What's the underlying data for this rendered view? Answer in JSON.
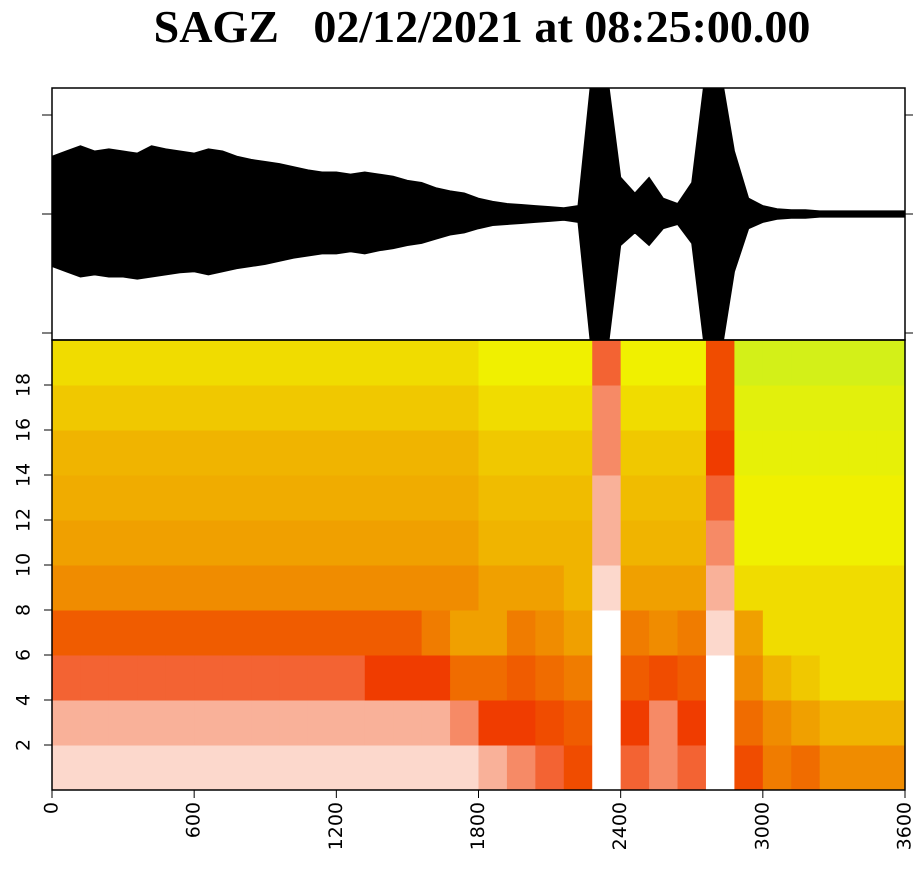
{
  "chart_data": [
    {
      "type": "waveform",
      "title": "SAGZ   02/12/2021 at 08:25:00.00",
      "color": "#000000",
      "xlim": [
        0,
        3600
      ],
      "ylim": [
        -1.2,
        1.2
      ],
      "x": [
        0,
        60,
        120,
        180,
        240,
        300,
        360,
        420,
        480,
        540,
        600,
        660,
        720,
        780,
        840,
        900,
        960,
        1020,
        1080,
        1140,
        1200,
        1260,
        1320,
        1380,
        1440,
        1500,
        1560,
        1620,
        1680,
        1740,
        1800,
        1860,
        1920,
        1980,
        2040,
        2100,
        2160,
        2220,
        2280,
        2340,
        2400,
        2460,
        2520,
        2580,
        2640,
        2700,
        2760,
        2820,
        2880,
        2940,
        3000,
        3060,
        3120,
        3180,
        3240,
        3300,
        3360,
        3420,
        3480,
        3540,
        3600
      ],
      "series": [
        {
          "name": "upper",
          "values": [
            0.55,
            0.6,
            0.65,
            0.6,
            0.62,
            0.6,
            0.58,
            0.65,
            0.62,
            0.6,
            0.58,
            0.62,
            0.6,
            0.55,
            0.52,
            0.5,
            0.48,
            0.45,
            0.42,
            0.4,
            0.4,
            0.38,
            0.4,
            0.38,
            0.36,
            0.32,
            0.3,
            0.25,
            0.22,
            0.2,
            0.15,
            0.12,
            0.1,
            0.09,
            0.08,
            0.07,
            0.06,
            0.08,
            1.4,
            1.4,
            0.35,
            0.2,
            0.35,
            0.15,
            0.1,
            0.3,
            1.4,
            1.4,
            0.6,
            0.15,
            0.08,
            0.05,
            0.04,
            0.04,
            0.03,
            0.03,
            0.03,
            0.03,
            0.03,
            0.03,
            0.03
          ]
        },
        {
          "name": "lower",
          "values": [
            -0.5,
            -0.55,
            -0.6,
            -0.58,
            -0.6,
            -0.6,
            -0.62,
            -0.6,
            -0.58,
            -0.56,
            -0.55,
            -0.58,
            -0.55,
            -0.52,
            -0.5,
            -0.48,
            -0.45,
            -0.42,
            -0.4,
            -0.38,
            -0.38,
            -0.36,
            -0.38,
            -0.35,
            -0.33,
            -0.3,
            -0.28,
            -0.24,
            -0.2,
            -0.18,
            -0.14,
            -0.11,
            -0.1,
            -0.09,
            -0.08,
            -0.07,
            -0.06,
            -0.08,
            -1.4,
            -1.4,
            -0.3,
            -0.18,
            -0.3,
            -0.14,
            -0.1,
            -0.28,
            -1.4,
            -1.4,
            -0.55,
            -0.14,
            -0.08,
            -0.05,
            -0.04,
            -0.04,
            -0.03,
            -0.03,
            -0.03,
            -0.03,
            -0.03,
            -0.03,
            -0.03
          ]
        }
      ]
    },
    {
      "type": "spectrogram",
      "xlim": [
        0,
        3600
      ],
      "ylim": [
        0,
        20
      ],
      "xticks": [
        0,
        600,
        1200,
        1800,
        2400,
        3000,
        3600
      ],
      "yticks": [
        2,
        4,
        6,
        8,
        10,
        12,
        14,
        16,
        18
      ],
      "zlim": [
        0,
        1
      ],
      "colormap": [
        "#a8f03c",
        "#f0f000",
        "#f08c00",
        "#f03c00",
        "#ffffff"
      ],
      "z": [
        [
          0.95,
          0.95,
          0.95,
          0.95,
          0.95,
          0.95,
          0.95,
          0.95,
          0.95,
          0.95,
          0.95,
          0.95,
          0.95,
          0.95,
          0.95,
          0.9,
          0.85,
          0.8,
          0.7,
          1.0,
          0.8,
          0.85,
          0.8,
          1.0,
          0.7,
          0.55,
          0.6,
          0.5,
          0.5,
          0.5
        ],
        [
          0.9,
          0.9,
          0.9,
          0.9,
          0.9,
          0.9,
          0.9,
          0.9,
          0.9,
          0.9,
          0.9,
          0.9,
          0.9,
          0.9,
          0.85,
          0.75,
          0.75,
          0.7,
          0.65,
          1.0,
          0.75,
          0.85,
          0.75,
          1.0,
          0.6,
          0.5,
          0.45,
          0.4,
          0.4,
          0.4
        ],
        [
          0.8,
          0.8,
          0.8,
          0.8,
          0.8,
          0.8,
          0.8,
          0.8,
          0.8,
          0.8,
          0.8,
          0.75,
          0.75,
          0.75,
          0.6,
          0.6,
          0.65,
          0.6,
          0.55,
          1.0,
          0.65,
          0.7,
          0.65,
          1.0,
          0.5,
          0.4,
          0.35,
          0.3,
          0.3,
          0.3
        ],
        [
          0.65,
          0.65,
          0.65,
          0.65,
          0.65,
          0.65,
          0.65,
          0.65,
          0.65,
          0.65,
          0.65,
          0.65,
          0.65,
          0.55,
          0.45,
          0.45,
          0.55,
          0.5,
          0.45,
          1.0,
          0.55,
          0.5,
          0.55,
          0.95,
          0.45,
          0.3,
          0.3,
          0.3,
          0.3,
          0.3
        ],
        [
          0.5,
          0.5,
          0.5,
          0.5,
          0.5,
          0.5,
          0.5,
          0.5,
          0.5,
          0.5,
          0.5,
          0.5,
          0.5,
          0.5,
          0.5,
          0.45,
          0.45,
          0.45,
          0.4,
          0.95,
          0.45,
          0.45,
          0.45,
          0.9,
          0.3,
          0.3,
          0.3,
          0.3,
          0.3,
          0.3
        ],
        [
          0.45,
          0.45,
          0.45,
          0.45,
          0.45,
          0.45,
          0.45,
          0.45,
          0.45,
          0.45,
          0.45,
          0.45,
          0.45,
          0.45,
          0.45,
          0.4,
          0.4,
          0.4,
          0.4,
          0.9,
          0.4,
          0.4,
          0.4,
          0.85,
          0.25,
          0.25,
          0.25,
          0.25,
          0.25,
          0.25
        ],
        [
          0.42,
          0.42,
          0.42,
          0.42,
          0.42,
          0.42,
          0.42,
          0.42,
          0.42,
          0.42,
          0.42,
          0.42,
          0.42,
          0.42,
          0.42,
          0.38,
          0.38,
          0.38,
          0.38,
          0.9,
          0.38,
          0.38,
          0.38,
          0.8,
          0.25,
          0.25,
          0.25,
          0.25,
          0.25,
          0.25
        ],
        [
          0.4,
          0.4,
          0.4,
          0.4,
          0.4,
          0.4,
          0.4,
          0.4,
          0.4,
          0.4,
          0.4,
          0.4,
          0.4,
          0.4,
          0.4,
          0.35,
          0.35,
          0.35,
          0.35,
          0.85,
          0.35,
          0.35,
          0.35,
          0.75,
          0.22,
          0.22,
          0.22,
          0.22,
          0.22,
          0.22
        ],
        [
          0.35,
          0.35,
          0.35,
          0.35,
          0.35,
          0.35,
          0.35,
          0.35,
          0.35,
          0.35,
          0.35,
          0.35,
          0.35,
          0.35,
          0.35,
          0.3,
          0.3,
          0.3,
          0.3,
          0.85,
          0.3,
          0.3,
          0.3,
          0.7,
          0.2,
          0.2,
          0.2,
          0.2,
          0.2,
          0.2
        ],
        [
          0.3,
          0.3,
          0.3,
          0.3,
          0.3,
          0.3,
          0.3,
          0.3,
          0.3,
          0.3,
          0.3,
          0.3,
          0.3,
          0.3,
          0.3,
          0.25,
          0.25,
          0.25,
          0.25,
          0.8,
          0.25,
          0.25,
          0.25,
          0.7,
          0.15,
          0.15,
          0.15,
          0.15,
          0.15,
          0.15
        ]
      ]
    }
  ]
}
